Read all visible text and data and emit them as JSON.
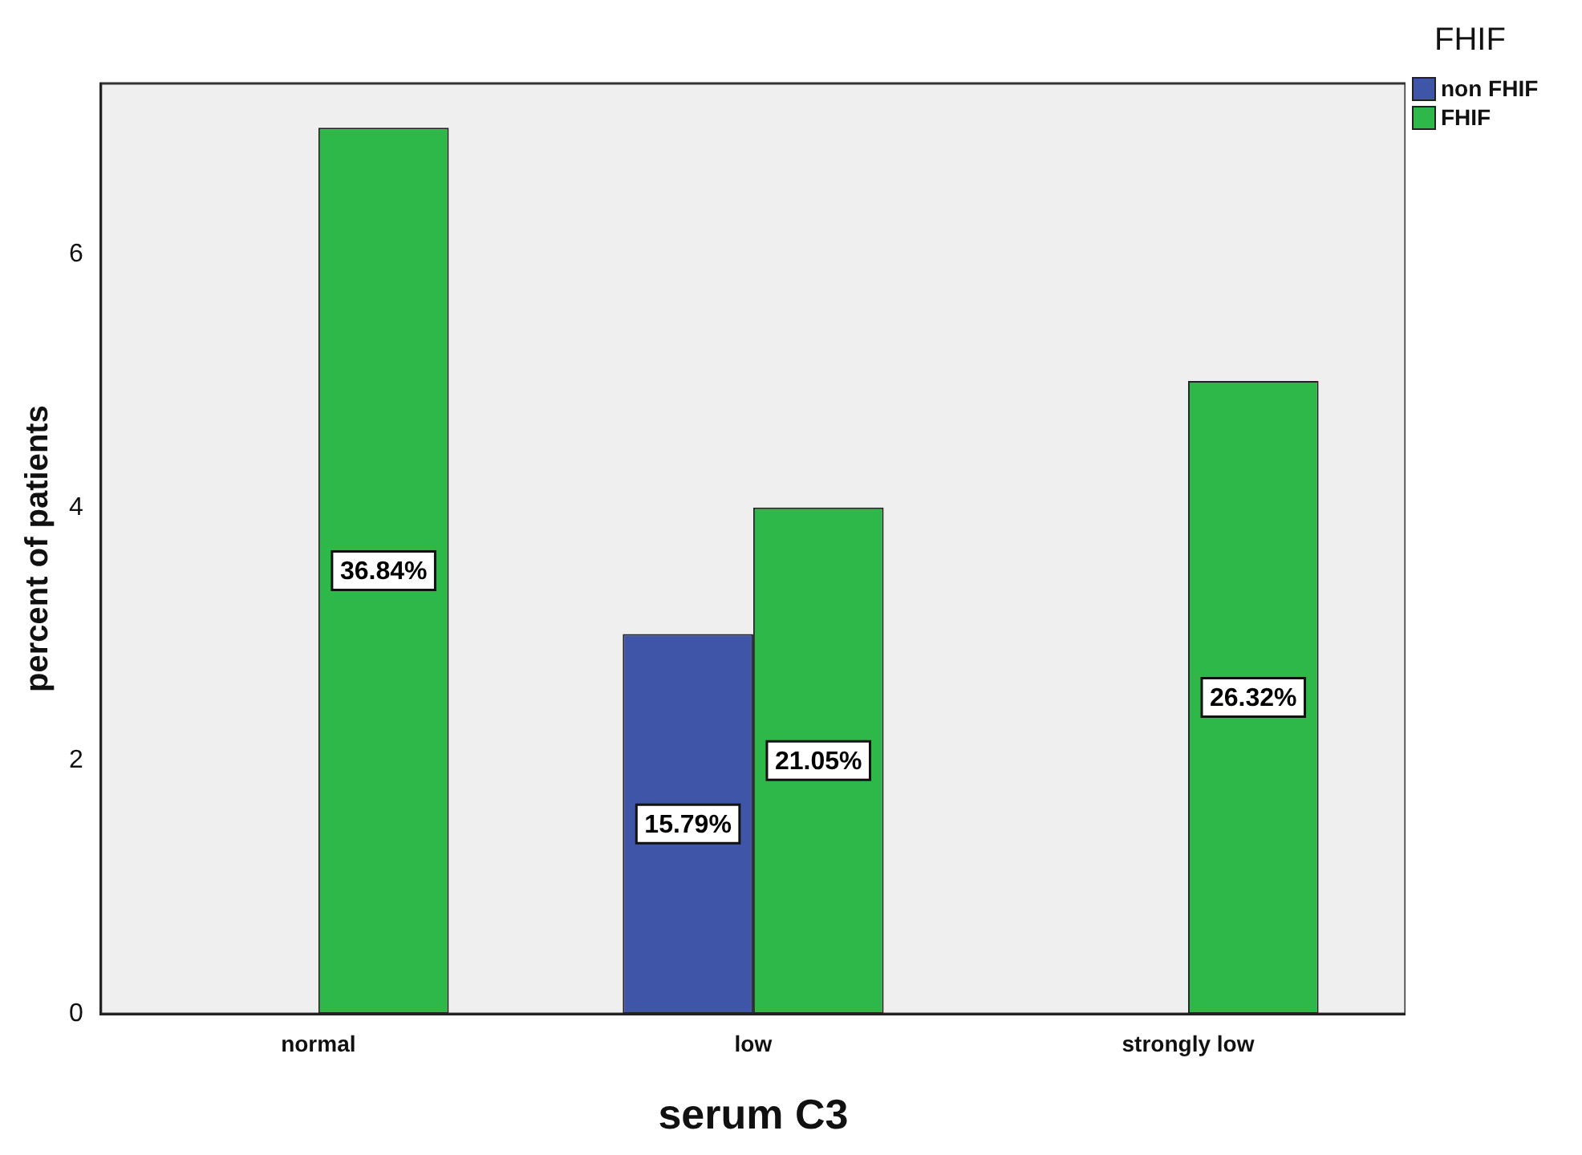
{
  "chart_data": {
    "type": "bar",
    "xlabel": "serum C3",
    "ylabel": "percent of patients",
    "legend_title": "FHIF",
    "legend": "top right",
    "grid": false,
    "categories": [
      "normal",
      "low",
      "strongly low"
    ],
    "series": [
      {
        "name": "non FHIF",
        "color": "#3f56a8",
        "values": [
          null,
          3,
          null
        ]
      },
      {
        "name": "FHIF",
        "color": "#2fb84a",
        "values": [
          7,
          4,
          5
        ]
      }
    ],
    "annotations": [
      {
        "text": "36.84%",
        "x": "normal",
        "y": 3.5
      },
      {
        "text": "15.79%",
        "x": "low",
        "y": 1.5
      },
      {
        "text": "21.05%",
        "x": "low",
        "y": 2
      },
      {
        "text": "26.32%",
        "x": "strongly low",
        "y": 2.5
      }
    ],
    "ylim": [
      0,
      7.35
    ],
    "yticks": [
      0,
      2,
      4,
      6
    ]
  }
}
